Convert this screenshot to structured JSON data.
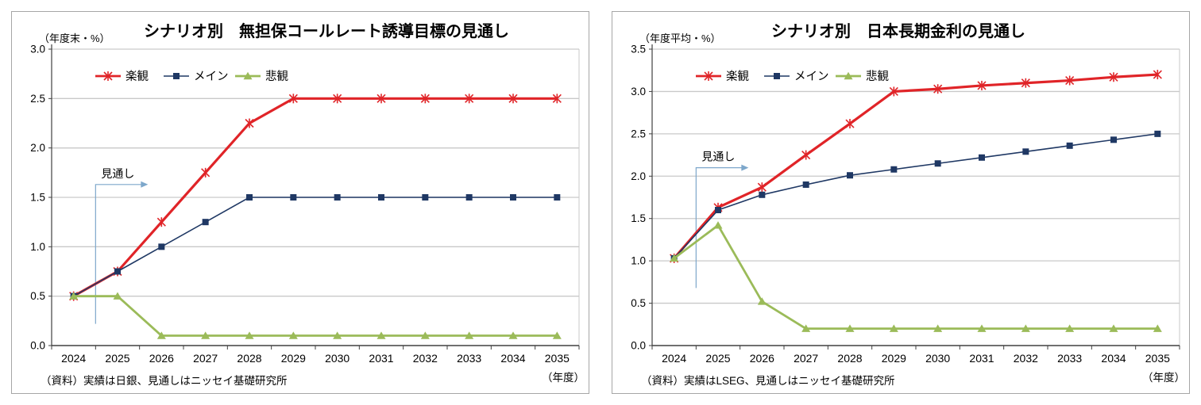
{
  "page": {
    "background": "#ffffff"
  },
  "colors": {
    "grid": "#c9c9c9",
    "axis": "#404040",
    "plot_border": "#c9c9c9",
    "annotation": "#7da7cb",
    "text": "#000000"
  },
  "chart_data": [
    {
      "type": "line",
      "title": "シナリオ別　無担保コールレート誘導目標の見通し",
      "unit_label": "（年度末・%）",
      "xaxis_unit": "（年度）",
      "source_note": "（資料）実績は日銀、見通しはニッセイ基礎研究所",
      "categories": [
        2024,
        2025,
        2026,
        2027,
        2028,
        2029,
        2030,
        2031,
        2032,
        2033,
        2034,
        2035
      ],
      "ylim": [
        0,
        3.0
      ],
      "ytick_step": 0.5,
      "grid": true,
      "legend_position": "inside-top-left",
      "series": [
        {
          "name": "楽観",
          "color": "#e02428",
          "marker": "star",
          "line_width": 3.2,
          "values": [
            0.5,
            0.75,
            1.25,
            1.75,
            2.25,
            2.5,
            2.5,
            2.5,
            2.5,
            2.5,
            2.5,
            2.5
          ]
        },
        {
          "name": "メイン",
          "color": "#1f3864",
          "marker": "square",
          "line_width": 1.6,
          "values": [
            0.5,
            0.75,
            1.0,
            1.25,
            1.5,
            1.5,
            1.5,
            1.5,
            1.5,
            1.5,
            1.5,
            1.5
          ]
        },
        {
          "name": "悲観",
          "color": "#9bbb59",
          "marker": "triangle",
          "line_width": 2.8,
          "values": [
            0.5,
            0.5,
            0.1,
            0.1,
            0.1,
            0.1,
            0.1,
            0.1,
            0.1,
            0.1,
            0.1,
            0.1
          ]
        }
      ],
      "forecast_annotation": {
        "label": "見通し",
        "after_category": 2024,
        "arrow_value": 1.63,
        "line_bottom_value": 0.22
      }
    },
    {
      "type": "line",
      "title": "シナリオ別　日本長期金利の見通し",
      "unit_label": "（年度平均・%）",
      "xaxis_unit": "（年度）",
      "source_note": "（資料）実績はLSEG、見通しはニッセイ基礎研究所",
      "categories": [
        2024,
        2025,
        2026,
        2027,
        2028,
        2029,
        2030,
        2031,
        2032,
        2033,
        2034,
        2035
      ],
      "ylim": [
        0,
        3.5
      ],
      "ytick_step": 0.5,
      "grid": true,
      "legend_position": "inside-top-left",
      "series": [
        {
          "name": "楽観",
          "color": "#e02428",
          "marker": "star",
          "line_width": 3.2,
          "values": [
            1.03,
            1.63,
            1.87,
            2.25,
            2.62,
            3.0,
            3.03,
            3.07,
            3.1,
            3.13,
            3.17,
            3.2
          ]
        },
        {
          "name": "メイン",
          "color": "#1f3864",
          "marker": "square",
          "line_width": 1.6,
          "values": [
            1.03,
            1.6,
            1.78,
            1.9,
            2.01,
            2.08,
            2.15,
            2.22,
            2.29,
            2.36,
            2.43,
            2.5
          ]
        },
        {
          "name": "悲観",
          "color": "#9bbb59",
          "marker": "triangle",
          "line_width": 2.8,
          "values": [
            1.03,
            1.42,
            0.52,
            0.2,
            0.2,
            0.2,
            0.2,
            0.2,
            0.2,
            0.2,
            0.2,
            0.2
          ]
        }
      ],
      "forecast_annotation": {
        "label": "見通し",
        "after_category": 2024,
        "arrow_value": 2.1,
        "line_bottom_value": 0.68
      }
    }
  ]
}
